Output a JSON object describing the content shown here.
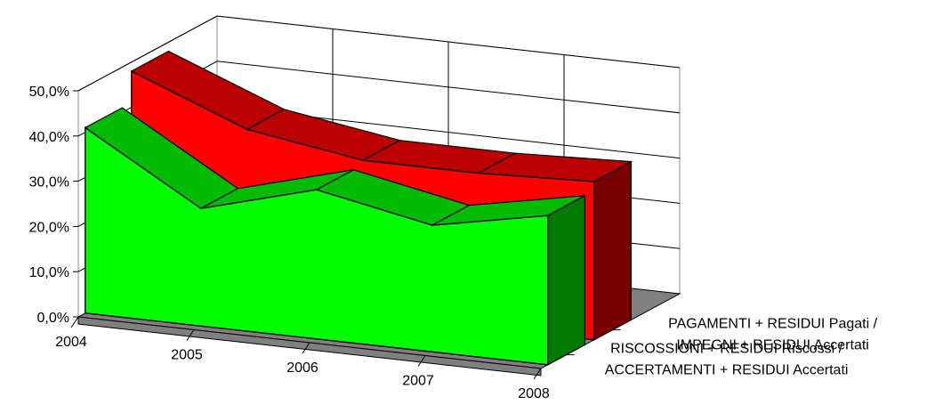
{
  "chart_data": {
    "type": "area",
    "three_d": true,
    "categories": [
      "2004",
      "2005",
      "2006",
      "2007",
      "2008"
    ],
    "y_ticks": [
      "0,0%",
      "10,0%",
      "20,0%",
      "30,0%",
      "40,0%",
      "50,0%"
    ],
    "ylim": [
      0,
      50
    ],
    "grid": true,
    "series": [
      {
        "label_lines": [
          "RISCOSSIONI + RESIDUI Riscossi /",
          "ACCERTAMENTI + RESIDUI Accertati"
        ],
        "values": [
          41,
          26,
          33,
          28,
          33
        ],
        "color": "#00ff00",
        "top_color": "#00bb00",
        "side_color": "#007a00"
      },
      {
        "label_lines": [
          "PAGAMENTI + RESIDUI Pagati /",
          "IMPEGNI + RESIDUI Accertati"
        ],
        "values": [
          48,
          38,
          34,
          34,
          35
        ],
        "color": "#ff0000",
        "top_color": "#bb0000",
        "side_color": "#7a0000"
      }
    ]
  }
}
